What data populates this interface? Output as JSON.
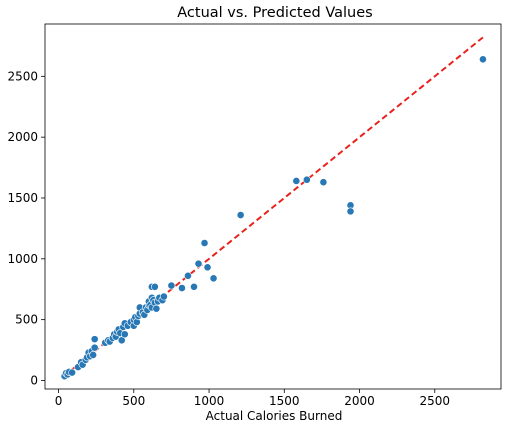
{
  "chart_data": {
    "type": "scatter",
    "title": "Actual vs. Predicted Values",
    "xlabel": "Actual Calories Burned",
    "ylabel": "",
    "xlim": [
      -90,
      2940
    ],
    "ylim": [
      -70,
      2930
    ],
    "x_ticks": [
      0,
      500,
      1000,
      1500,
      2000,
      2500
    ],
    "y_ticks": [
      0,
      500,
      1000,
      1500,
      2000,
      2500
    ],
    "x_tick_labels": [
      "0",
      "500",
      "1000",
      "1500",
      "2000",
      "2500"
    ],
    "y_tick_labels": [
      "0",
      "500",
      "1000",
      "1500",
      "2000",
      "2500"
    ],
    "grid": false,
    "legend": "none",
    "reference_line": {
      "from": [
        40,
        40
      ],
      "to": [
        2820,
        2820
      ],
      "style": "dashed",
      "color": "#e8231d"
    },
    "point_color": "#2878b5",
    "points": [
      [
        40,
        35
      ],
      [
        50,
        60
      ],
      [
        60,
        50
      ],
      [
        70,
        70
      ],
      [
        90,
        65
      ],
      [
        130,
        110
      ],
      [
        150,
        150
      ],
      [
        160,
        130
      ],
      [
        180,
        170
      ],
      [
        190,
        190
      ],
      [
        200,
        230
      ],
      [
        210,
        200
      ],
      [
        220,
        240
      ],
      [
        230,
        210
      ],
      [
        240,
        270
      ],
      [
        240,
        340
      ],
      [
        310,
        310
      ],
      [
        330,
        330
      ],
      [
        340,
        320
      ],
      [
        360,
        350
      ],
      [
        370,
        380
      ],
      [
        380,
        360
      ],
      [
        390,
        400
      ],
      [
        400,
        420
      ],
      [
        410,
        390
      ],
      [
        420,
        330
      ],
      [
        430,
        440
      ],
      [
        440,
        380
      ],
      [
        440,
        470
      ],
      [
        460,
        450
      ],
      [
        480,
        480
      ],
      [
        500,
        450
      ],
      [
        500,
        500
      ],
      [
        510,
        520
      ],
      [
        520,
        480
      ],
      [
        530,
        530
      ],
      [
        540,
        550
      ],
      [
        540,
        600
      ],
      [
        560,
        560
      ],
      [
        570,
        540
      ],
      [
        580,
        600
      ],
      [
        590,
        580
      ],
      [
        600,
        620
      ],
      [
        600,
        650
      ],
      [
        610,
        620
      ],
      [
        620,
        600
      ],
      [
        620,
        680
      ],
      [
        620,
        770
      ],
      [
        630,
        660
      ],
      [
        640,
        640
      ],
      [
        640,
        770
      ],
      [
        650,
        590
      ],
      [
        660,
        650
      ],
      [
        670,
        680
      ],
      [
        690,
        660
      ],
      [
        700,
        690
      ],
      [
        750,
        780
      ],
      [
        820,
        760
      ],
      [
        860,
        860
      ],
      [
        900,
        770
      ],
      [
        930,
        960
      ],
      [
        970,
        1130
      ],
      [
        990,
        930
      ],
      [
        1030,
        840
      ],
      [
        1210,
        1360
      ],
      [
        1580,
        1640
      ],
      [
        1650,
        1650
      ],
      [
        1760,
        1630
      ],
      [
        1940,
        1440
      ],
      [
        1940,
        1390
      ],
      [
        2820,
        2640
      ]
    ]
  }
}
